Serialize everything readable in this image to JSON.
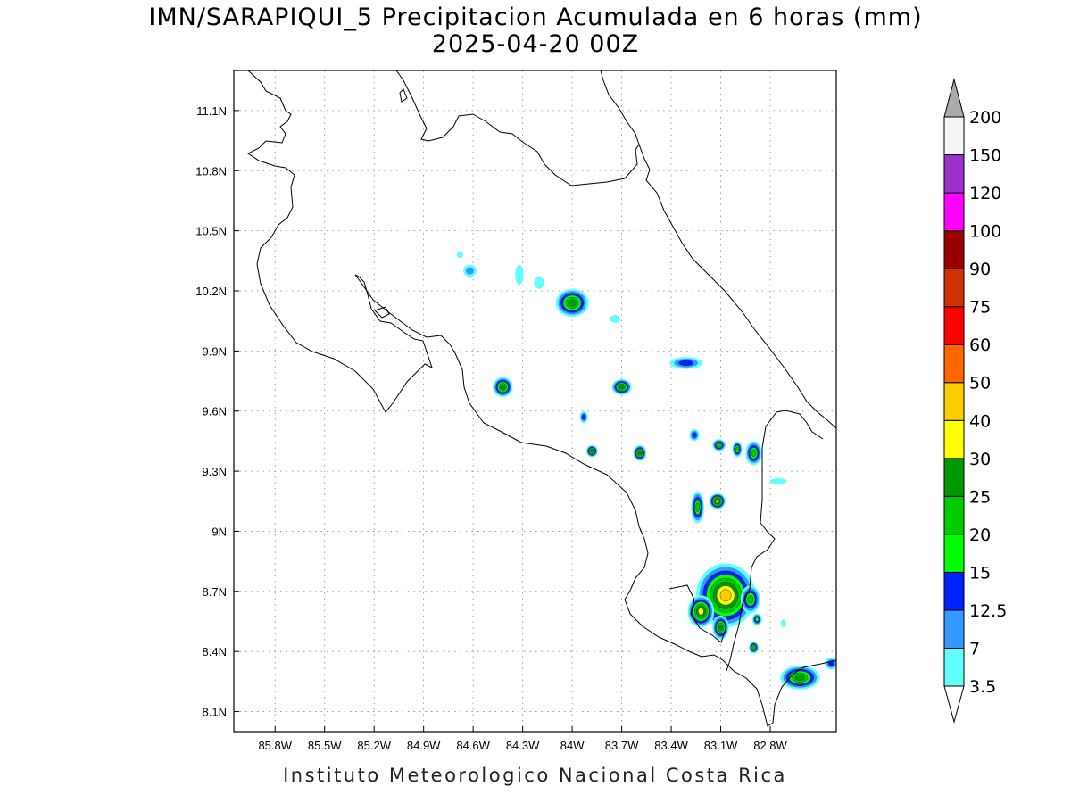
{
  "header": {
    "title_line1": "IMN/SARAPIQUI_5 Precipitacion Acumulada en 6 horas (mm)",
    "title_line2": "2025-04-20 00Z"
  },
  "footer": {
    "credit": "Instituto Meteorologico Nacional Costa Rica"
  },
  "map": {
    "lon_range": [
      -86.05,
      -82.4
    ],
    "lat_range": [
      8.0,
      11.3
    ],
    "lon_ticks": [
      {
        "value": -85.8,
        "label": "85.8W"
      },
      {
        "value": -85.5,
        "label": "85.5W"
      },
      {
        "value": -85.2,
        "label": "85.2W"
      },
      {
        "value": -84.9,
        "label": "84.9W"
      },
      {
        "value": -84.6,
        "label": "84.6W"
      },
      {
        "value": -84.3,
        "label": "84.3W"
      },
      {
        "value": -84.0,
        "label": "84W"
      },
      {
        "value": -83.7,
        "label": "83.7W"
      },
      {
        "value": -83.4,
        "label": "83.4W"
      },
      {
        "value": -83.1,
        "label": "83.1W"
      },
      {
        "value": -82.8,
        "label": "82.8W"
      }
    ],
    "lat_ticks": [
      {
        "value": 8.1,
        "label": "8.1N"
      },
      {
        "value": 8.4,
        "label": "8.4N"
      },
      {
        "value": 8.7,
        "label": "8.7N"
      },
      {
        "value": 9.0,
        "label": "9N"
      },
      {
        "value": 9.3,
        "label": "9.3N"
      },
      {
        "value": 9.6,
        "label": "9.6N"
      },
      {
        "value": 9.9,
        "label": "9.9N"
      },
      {
        "value": 10.2,
        "label": "10.2N"
      },
      {
        "value": 10.5,
        "label": "10.5N"
      },
      {
        "value": 10.8,
        "label": "10.8N"
      },
      {
        "value": 11.1,
        "label": "11.1N"
      }
    ],
    "grid": true,
    "colorbar": {
      "labels": [
        "3.5",
        "7",
        "12.5",
        "15",
        "20",
        "25",
        "30",
        "40",
        "50",
        "60",
        "75",
        "90",
        "100",
        "120",
        "150",
        "200"
      ],
      "colors": [
        "#ffffff",
        "#60ffff",
        "#3399ff",
        "#0022ff",
        "#00ff00",
        "#00cc00",
        "#009900",
        "#ffff00",
        "#ffcc00",
        "#ff6600",
        "#ff0000",
        "#cc3300",
        "#990000",
        "#ff00ff",
        "#9933cc",
        "#f5f5f5",
        "#aaaaaa"
      ]
    },
    "precip_cells": [
      {
        "lon": -84.62,
        "lat": 10.3,
        "rx": 0.04,
        "ry": 0.03,
        "level": 2
      },
      {
        "lon": -84.68,
        "lat": 10.38,
        "rx": 0.02,
        "ry": 0.015,
        "level": 1
      },
      {
        "lon": -84.32,
        "lat": 10.28,
        "rx": 0.025,
        "ry": 0.05,
        "level": 1
      },
      {
        "lon": -84.2,
        "lat": 10.24,
        "rx": 0.03,
        "ry": 0.03,
        "level": 1
      },
      {
        "lon": -84.0,
        "lat": 10.14,
        "rx": 0.1,
        "ry": 0.07,
        "level": 6
      },
      {
        "lon": -83.74,
        "lat": 10.06,
        "rx": 0.03,
        "ry": 0.02,
        "level": 1
      },
      {
        "lon": -84.42,
        "lat": 9.72,
        "rx": 0.06,
        "ry": 0.05,
        "level": 6
      },
      {
        "lon": -83.7,
        "lat": 9.72,
        "rx": 0.06,
        "ry": 0.04,
        "level": 6
      },
      {
        "lon": -83.31,
        "lat": 9.84,
        "rx": 0.1,
        "ry": 0.03,
        "level": 3
      },
      {
        "lon": -83.93,
        "lat": 9.57,
        "rx": 0.025,
        "ry": 0.03,
        "level": 3
      },
      {
        "lon": -83.88,
        "lat": 9.4,
        "rx": 0.035,
        "ry": 0.03,
        "level": 6
      },
      {
        "lon": -83.59,
        "lat": 9.39,
        "rx": 0.04,
        "ry": 0.04,
        "level": 6
      },
      {
        "lon": -83.26,
        "lat": 9.48,
        "rx": 0.03,
        "ry": 0.03,
        "level": 3
      },
      {
        "lon": -83.11,
        "lat": 9.43,
        "rx": 0.04,
        "ry": 0.03,
        "level": 5
      },
      {
        "lon": -83.0,
        "lat": 9.41,
        "rx": 0.03,
        "ry": 0.04,
        "level": 5
      },
      {
        "lon": -82.9,
        "lat": 9.39,
        "rx": 0.05,
        "ry": 0.06,
        "level": 5
      },
      {
        "lon": -83.24,
        "lat": 9.12,
        "rx": 0.04,
        "ry": 0.08,
        "level": 5
      },
      {
        "lon": -83.12,
        "lat": 9.15,
        "rx": 0.05,
        "ry": 0.04,
        "level": 7
      },
      {
        "lon": -82.75,
        "lat": 9.25,
        "rx": 0.05,
        "ry": 0.015,
        "level": 1
      },
      {
        "lon": -83.07,
        "lat": 8.68,
        "rx": 0.18,
        "ry": 0.16,
        "level": 8
      },
      {
        "lon": -82.92,
        "lat": 8.66,
        "rx": 0.06,
        "ry": 0.07,
        "level": 5
      },
      {
        "lon": -83.1,
        "lat": 8.52,
        "rx": 0.05,
        "ry": 0.06,
        "level": 6
      },
      {
        "lon": -83.22,
        "lat": 8.6,
        "rx": 0.08,
        "ry": 0.08,
        "level": 7
      },
      {
        "lon": -82.88,
        "lat": 8.56,
        "rx": 0.03,
        "ry": 0.03,
        "level": 4
      },
      {
        "lon": -82.9,
        "lat": 8.42,
        "rx": 0.03,
        "ry": 0.03,
        "level": 5
      },
      {
        "lon": -82.72,
        "lat": 8.54,
        "rx": 0.015,
        "ry": 0.02,
        "level": 1
      },
      {
        "lon": -82.62,
        "lat": 8.27,
        "rx": 0.12,
        "ry": 0.06,
        "level": 6
      },
      {
        "lon": -82.43,
        "lat": 8.34,
        "rx": 0.04,
        "ry": 0.03,
        "level": 3
      }
    ]
  }
}
